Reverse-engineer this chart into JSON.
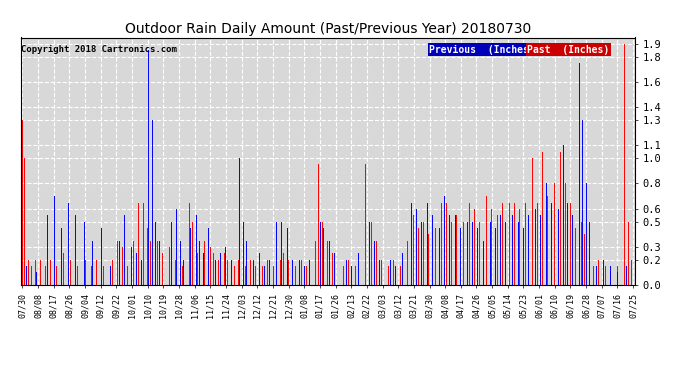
{
  "title": "Outdoor Rain Daily Amount (Past/Previous Year) 20180730",
  "copyright": "Copyright 2018 Cartronics.com",
  "ylabel_ticks": [
    0.0,
    0.2,
    0.3,
    0.5,
    0.6,
    0.8,
    1.0,
    1.1,
    1.3,
    1.4,
    1.6,
    1.8,
    1.9
  ],
  "ylim": [
    0.0,
    1.95
  ],
  "legend_labels": [
    "Previous  (Inches)",
    "Past  (Inches)"
  ],
  "legend_colors": [
    "#0000ff",
    "#ff0000"
  ],
  "legend_bg_colors": [
    "#0000bb",
    "#cc0000"
  ],
  "background_color": "#ffffff",
  "plot_bg_color": "#d8d8d8",
  "grid_color": "#ffffff",
  "title_fontsize": 10,
  "x_labels": [
    "07/30",
    "08/08",
    "08/17",
    "08/26",
    "09/04",
    "09/12",
    "09/22",
    "10/01",
    "10/10",
    "10/19",
    "10/28",
    "11/06",
    "11/15",
    "11/24",
    "12/03",
    "12/12",
    "12/21",
    "12/30",
    "01/08",
    "01/17",
    "01/26",
    "02/13",
    "02/22",
    "03/03",
    "03/12",
    "03/21",
    "03/30",
    "04/08",
    "04/17",
    "04/26",
    "05/05",
    "05/14",
    "05/23",
    "06/01",
    "06/10",
    "06/19",
    "06/28",
    "07/07",
    "07/16",
    "07/25"
  ],
  "blue_data": [
    [
      2,
      0.15
    ],
    [
      8,
      0.1
    ],
    [
      14,
      0.55
    ],
    [
      18,
      0.7
    ],
    [
      22,
      0.45
    ],
    [
      26,
      0.65
    ],
    [
      30,
      0.55
    ],
    [
      35,
      0.5
    ],
    [
      40,
      0.35
    ],
    [
      45,
      0.45
    ],
    [
      50,
      0.15
    ],
    [
      55,
      0.35
    ],
    [
      58,
      0.55
    ],
    [
      62,
      0.3
    ],
    [
      65,
      0.25
    ],
    [
      68,
      0.2
    ],
    [
      72,
      1.85
    ],
    [
      74,
      1.3
    ],
    [
      76,
      0.5
    ],
    [
      78,
      0.35
    ],
    [
      85,
      0.5
    ],
    [
      88,
      0.6
    ],
    [
      90,
      0.35
    ],
    [
      92,
      0.2
    ],
    [
      96,
      0.45
    ],
    [
      99,
      0.55
    ],
    [
      101,
      0.35
    ],
    [
      103,
      0.25
    ],
    [
      106,
      0.45
    ],
    [
      110,
      0.2
    ],
    [
      113,
      0.25
    ],
    [
      116,
      0.3
    ],
    [
      119,
      0.2
    ],
    [
      124,
      1.0
    ],
    [
      126,
      0.5
    ],
    [
      128,
      0.35
    ],
    [
      132,
      0.2
    ],
    [
      135,
      0.25
    ],
    [
      138,
      0.15
    ],
    [
      141,
      0.2
    ],
    [
      145,
      0.5
    ],
    [
      148,
      0.5
    ],
    [
      151,
      0.45
    ],
    [
      154,
      0.2
    ],
    [
      158,
      0.2
    ],
    [
      161,
      0.15
    ],
    [
      164,
      0.2
    ],
    [
      170,
      0.5
    ],
    [
      172,
      0.45
    ],
    [
      175,
      0.35
    ],
    [
      178,
      0.25
    ],
    [
      185,
      0.2
    ],
    [
      188,
      0.15
    ],
    [
      192,
      0.25
    ],
    [
      198,
      0.5
    ],
    [
      201,
      0.35
    ],
    [
      204,
      0.2
    ],
    [
      210,
      0.2
    ],
    [
      213,
      0.15
    ],
    [
      217,
      0.25
    ],
    [
      222,
      0.65
    ],
    [
      225,
      0.6
    ],
    [
      228,
      0.5
    ],
    [
      231,
      0.65
    ],
    [
      234,
      0.55
    ],
    [
      238,
      0.45
    ],
    [
      241,
      0.7
    ],
    [
      244,
      0.55
    ],
    [
      247,
      0.55
    ],
    [
      250,
      0.45
    ],
    [
      254,
      0.5
    ],
    [
      257,
      0.5
    ],
    [
      260,
      0.45
    ],
    [
      263,
      0.35
    ],
    [
      267,
      0.5
    ],
    [
      270,
      0.45
    ],
    [
      273,
      0.55
    ],
    [
      276,
      0.5
    ],
    [
      280,
      0.55
    ],
    [
      283,
      0.5
    ],
    [
      286,
      0.45
    ],
    [
      289,
      0.55
    ],
    [
      293,
      0.6
    ],
    [
      296,
      0.55
    ],
    [
      299,
      0.8
    ],
    [
      302,
      0.65
    ],
    [
      306,
      0.6
    ],
    [
      309,
      1.1
    ],
    [
      311,
      0.65
    ],
    [
      314,
      0.55
    ],
    [
      318,
      1.75
    ],
    [
      320,
      1.3
    ],
    [
      322,
      0.8
    ],
    [
      324,
      0.5
    ],
    [
      328,
      0.15
    ],
    [
      332,
      0.2
    ],
    [
      336,
      0.15
    ],
    [
      340,
      0.1
    ],
    [
      345,
      0.15
    ]
  ],
  "red_data": [
    [
      0,
      1.3
    ],
    [
      1,
      1.0
    ],
    [
      3,
      0.2
    ],
    [
      5,
      0.15
    ],
    [
      7,
      0.2
    ],
    [
      10,
      0.2
    ],
    [
      13,
      0.15
    ],
    [
      16,
      0.2
    ],
    [
      19,
      0.15
    ],
    [
      23,
      0.25
    ],
    [
      27,
      0.2
    ],
    [
      31,
      0.15
    ],
    [
      36,
      0.2
    ],
    [
      39,
      0.15
    ],
    [
      42,
      0.2
    ],
    [
      46,
      0.15
    ],
    [
      51,
      0.2
    ],
    [
      54,
      0.35
    ],
    [
      57,
      0.3
    ],
    [
      60,
      0.15
    ],
    [
      63,
      0.35
    ],
    [
      66,
      0.65
    ],
    [
      69,
      0.65
    ],
    [
      71,
      0.45
    ],
    [
      73,
      0.35
    ],
    [
      77,
      0.35
    ],
    [
      80,
      0.25
    ],
    [
      84,
      0.3
    ],
    [
      87,
      0.2
    ],
    [
      91,
      0.15
    ],
    [
      95,
      0.65
    ],
    [
      97,
      0.5
    ],
    [
      100,
      0.25
    ],
    [
      104,
      0.35
    ],
    [
      107,
      0.3
    ],
    [
      109,
      0.25
    ],
    [
      112,
      0.2
    ],
    [
      115,
      0.25
    ],
    [
      117,
      0.2
    ],
    [
      121,
      0.15
    ],
    [
      123,
      0.2
    ],
    [
      127,
      0.15
    ],
    [
      130,
      0.2
    ],
    [
      133,
      0.15
    ],
    [
      137,
      0.15
    ],
    [
      140,
      0.2
    ],
    [
      143,
      0.15
    ],
    [
      147,
      0.2
    ],
    [
      149,
      0.25
    ],
    [
      152,
      0.2
    ],
    [
      156,
      0.15
    ],
    [
      159,
      0.2
    ],
    [
      162,
      0.15
    ],
    [
      167,
      0.35
    ],
    [
      169,
      0.95
    ],
    [
      171,
      0.5
    ],
    [
      174,
      0.35
    ],
    [
      177,
      0.25
    ],
    [
      183,
      0.15
    ],
    [
      186,
      0.2
    ],
    [
      190,
      0.15
    ],
    [
      196,
      0.95
    ],
    [
      199,
      0.5
    ],
    [
      202,
      0.35
    ],
    [
      205,
      0.2
    ],
    [
      209,
      0.15
    ],
    [
      212,
      0.2
    ],
    [
      216,
      0.15
    ],
    [
      220,
      0.35
    ],
    [
      223,
      0.55
    ],
    [
      226,
      0.45
    ],
    [
      229,
      0.5
    ],
    [
      232,
      0.4
    ],
    [
      236,
      0.45
    ],
    [
      239,
      0.65
    ],
    [
      242,
      0.65
    ],
    [
      245,
      0.5
    ],
    [
      248,
      0.55
    ],
    [
      252,
      0.5
    ],
    [
      255,
      0.65
    ],
    [
      258,
      0.6
    ],
    [
      261,
      0.5
    ],
    [
      265,
      0.7
    ],
    [
      268,
      0.6
    ],
    [
      271,
      0.55
    ],
    [
      274,
      0.65
    ],
    [
      278,
      0.65
    ],
    [
      281,
      0.65
    ],
    [
      284,
      0.6
    ],
    [
      287,
      0.65
    ],
    [
      291,
      1.0
    ],
    [
      294,
      0.65
    ],
    [
      297,
      1.05
    ],
    [
      300,
      0.7
    ],
    [
      304,
      0.8
    ],
    [
      307,
      1.05
    ],
    [
      310,
      0.8
    ],
    [
      313,
      0.65
    ],
    [
      316,
      0.45
    ],
    [
      319,
      0.5
    ],
    [
      321,
      0.4
    ],
    [
      326,
      0.15
    ],
    [
      329,
      0.2
    ],
    [
      333,
      0.15
    ],
    [
      336,
      0.15
    ],
    [
      340,
      0.15
    ],
    [
      344,
      1.9
    ],
    [
      346,
      0.5
    ],
    [
      348,
      0.2
    ]
  ]
}
